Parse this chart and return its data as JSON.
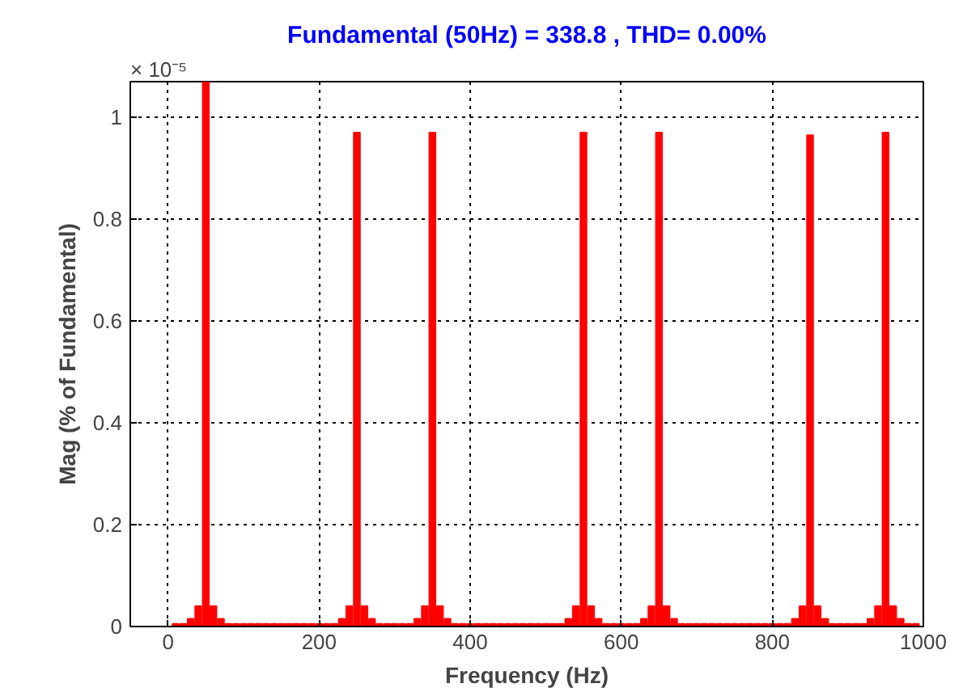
{
  "chart_data": {
    "type": "bar",
    "title": "Fundamental (50Hz) = 338.8 , THD= 0.00%",
    "xlabel": "Frequency (Hz)",
    "ylabel": "Mag (% of Fundamental)",
    "annotations": [
      "× 10⁻⁵"
    ],
    "x": [
      10,
      20,
      30,
      40,
      50,
      60,
      70,
      80,
      90,
      100,
      110,
      120,
      130,
      140,
      150,
      160,
      170,
      180,
      190,
      200,
      210,
      220,
      230,
      240,
      250,
      260,
      270,
      280,
      290,
      300,
      310,
      320,
      330,
      340,
      350,
      360,
      370,
      380,
      390,
      400,
      410,
      420,
      430,
      440,
      450,
      460,
      470,
      480,
      490,
      500,
      510,
      520,
      530,
      540,
      550,
      560,
      570,
      580,
      590,
      600,
      610,
      620,
      630,
      640,
      650,
      660,
      670,
      680,
      690,
      700,
      710,
      720,
      730,
      740,
      750,
      760,
      770,
      780,
      790,
      800,
      810,
      820,
      830,
      840,
      850,
      860,
      870,
      880,
      890,
      900,
      910,
      920,
      930,
      940,
      950,
      960,
      970,
      980,
      990
    ],
    "values": [
      0.005,
      0.005,
      0.015,
      0.04,
      1.07,
      0.04,
      0.015,
      0.005,
      0.005,
      0.005,
      0.005,
      0.005,
      0.005,
      0.005,
      0.005,
      0.005,
      0.005,
      0.005,
      0.005,
      0.005,
      0.005,
      0.005,
      0.015,
      0.04,
      0.97,
      0.04,
      0.015,
      0.005,
      0.005,
      0.005,
      0.005,
      0.005,
      0.015,
      0.04,
      0.97,
      0.04,
      0.015,
      0.005,
      0.005,
      0.005,
      0.005,
      0.005,
      0.005,
      0.005,
      0.005,
      0.005,
      0.005,
      0.005,
      0.005,
      0.005,
      0.005,
      0.005,
      0.015,
      0.04,
      0.97,
      0.04,
      0.015,
      0.005,
      0.005,
      0.005,
      0.005,
      0.005,
      0.015,
      0.04,
      0.97,
      0.04,
      0.015,
      0.005,
      0.005,
      0.005,
      0.005,
      0.005,
      0.005,
      0.005,
      0.005,
      0.005,
      0.005,
      0.005,
      0.005,
      0.005,
      0.005,
      0.005,
      0.015,
      0.04,
      0.965,
      0.04,
      0.015,
      0.005,
      0.005,
      0.005,
      0.005,
      0.005,
      0.015,
      0.04,
      0.97,
      0.04,
      0.015,
      0.005,
      0.005
    ],
    "color": "#ff0000",
    "xlim": [
      -50,
      1000
    ],
    "ylim": [
      0,
      1.07
    ],
    "xticks": [
      0,
      200,
      400,
      600,
      800,
      1000
    ],
    "yticks": [
      0,
      0.2,
      0.4,
      0.6,
      0.8,
      1
    ],
    "grid": true
  }
}
